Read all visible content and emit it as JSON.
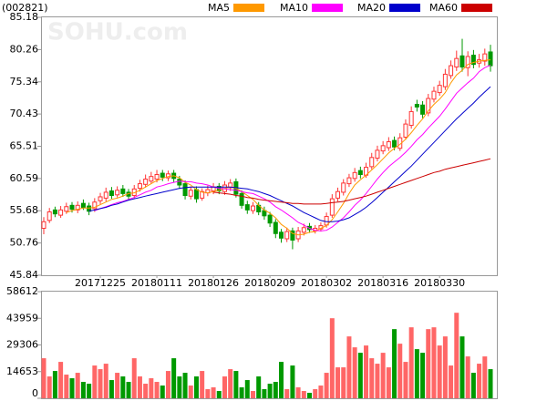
{
  "chart_data": [
    {
      "type": "candlestick",
      "title": "(002821)",
      "watermark": "SOHU.com",
      "up_color": "#ff3333",
      "down_color": "#009900",
      "categories": [
        null,
        null,
        null,
        null,
        null,
        null,
        null,
        null,
        null,
        null,
        "20171225",
        null,
        null,
        null,
        null,
        null,
        null,
        null,
        null,
        null,
        "20180111",
        null,
        null,
        null,
        null,
        null,
        null,
        null,
        null,
        null,
        "20180126",
        null,
        null,
        null,
        null,
        null,
        null,
        null,
        null,
        null,
        "20180209",
        null,
        null,
        null,
        null,
        null,
        null,
        null,
        null,
        null,
        "20180302",
        null,
        null,
        null,
        null,
        null,
        null,
        null,
        null,
        null,
        "20180316",
        null,
        null,
        null,
        null,
        null,
        null,
        null,
        null,
        null,
        "20180330",
        null,
        null,
        null,
        null,
        null,
        null,
        null,
        null,
        null
      ],
      "open": [
        53.0,
        54.2,
        55.8,
        55.0,
        55.6,
        56.5,
        55.8,
        56.8,
        56.4,
        56.0,
        57.2,
        57.6,
        58.7,
        58.1,
        59.0,
        58.5,
        58.0,
        59.1,
        59.7,
        60.2,
        60.5,
        61.4,
        60.7,
        61.4,
        60.5,
        59.8,
        57.9,
        58.9,
        57.6,
        58.4,
        58.7,
        59.4,
        58.6,
        59.2,
        60.1,
        58.3,
        56.6,
        55.7,
        56.5,
        55.7,
        55.0,
        53.9,
        52.4,
        51.4,
        52.6,
        51.4,
        52.4,
        53.3,
        52.6,
        52.9,
        53.5,
        55.0,
        57.6,
        58.5,
        59.8,
        60.6,
        61.8,
        61.1,
        62.4,
        63.7,
        64.8,
        65.3,
        66.4,
        65.2,
        66.9,
        68.7,
        71.9,
        71.8,
        70.6,
        72.7,
        73.7,
        74.6,
        76.3,
        77.6,
        79.3,
        77.5,
        79.4,
        78.2,
        78.5,
        79.9
      ],
      "high": [
        54.7,
        56.1,
        56.3,
        56.4,
        56.9,
        57.0,
        57.1,
        57.4,
        56.9,
        57.6,
        58.4,
        59.2,
        59.3,
        59.4,
        59.6,
        59.0,
        59.6,
        60.4,
        61.2,
        61.6,
        61.9,
        61.9,
        61.8,
        61.9,
        61.0,
        60.3,
        59.4,
        59.4,
        59.1,
        59.5,
        59.9,
        59.9,
        60.2,
        60.5,
        60.6,
        58.8,
        57.2,
        57.0,
        57.0,
        56.3,
        55.5,
        54.4,
        52.9,
        53.1,
        53.1,
        53.2,
        53.7,
        53.8,
        53.5,
        53.9,
        55.4,
        58.2,
        59.2,
        60.5,
        61.3,
        62.2,
        62.4,
        63.0,
        64.5,
        65.6,
        66.3,
        66.9,
        67.0,
        67.5,
        69.6,
        71.6,
        72.6,
        72.4,
        73.5,
        74.6,
        75.5,
        77.3,
        78.6,
        80.1,
        81.9,
        80.0,
        80.2,
        79.6,
        80.4,
        81.0
      ],
      "low": [
        52.1,
        53.8,
        54.7,
        54.6,
        55.2,
        55.4,
        55.3,
        55.8,
        55.0,
        55.5,
        56.7,
        57.1,
        57.5,
        57.7,
        57.8,
        57.3,
        57.6,
        58.6,
        59.2,
        59.8,
        60.0,
        60.2,
        60.2,
        60.0,
        59.0,
        57.4,
        57.4,
        56.9,
        57.2,
        57.9,
        58.2,
        58.2,
        58.1,
        58.7,
        57.7,
        56.0,
        55.2,
        55.2,
        55.0,
        54.3,
        53.2,
        51.5,
        50.8,
        50.9,
        49.8,
        50.9,
        51.9,
        52.3,
        52.2,
        52.5,
        53.1,
        54.6,
        57.1,
        58.0,
        59.3,
        60.1,
        60.6,
        60.7,
        62.0,
        63.2,
        64.3,
        64.8,
        64.9,
        64.8,
        66.5,
        68.2,
        70.8,
        69.8,
        70.1,
        72.2,
        73.2,
        74.1,
        75.8,
        77.0,
        76.9,
        76.2,
        77.4,
        77.5,
        77.8,
        76.9
      ],
      "close": [
        54.0,
        55.5,
        55.2,
        55.8,
        56.3,
        55.9,
        56.5,
        56.2,
        55.6,
        57.0,
        57.8,
        58.5,
        58.0,
        58.8,
        58.3,
        57.9,
        59.0,
        59.8,
        60.5,
        60.9,
        61.2,
        60.8,
        61.3,
        60.6,
        59.6,
        58.0,
        58.8,
        57.5,
        58.6,
        58.9,
        59.3,
        58.7,
        59.6,
        59.9,
        58.2,
        56.5,
        55.8,
        56.4,
        55.5,
        54.9,
        53.8,
        52.2,
        51.5,
        52.5,
        51.2,
        52.6,
        53.1,
        52.8,
        53.0,
        53.4,
        54.8,
        57.5,
        58.6,
        59.9,
        60.7,
        61.5,
        61.2,
        62.3,
        63.8,
        64.9,
        65.6,
        66.2,
        65.4,
        66.8,
        68.9,
        70.8,
        71.5,
        70.4,
        72.8,
        73.9,
        74.8,
        76.5,
        77.8,
        78.9,
        77.6,
        79.2,
        78.0,
        78.7,
        79.6,
        77.8
      ],
      "series": [
        {
          "name": "MA5",
          "color": "#ff9900",
          "values": [
            null,
            null,
            null,
            null,
            55.4,
            55.7,
            55.9,
            56.1,
            56.1,
            56.2,
            56.6,
            57.0,
            57.4,
            57.6,
            57.9,
            58.3,
            58.4,
            58.8,
            59.3,
            59.8,
            60.3,
            60.6,
            60.9,
            61.0,
            60.7,
            60.0,
            59.6,
            58.9,
            58.5,
            58.4,
            58.6,
            58.8,
            59.1,
            59.3,
            59.1,
            58.6,
            58.0,
            57.4,
            56.5,
            55.8,
            55.3,
            54.6,
            53.6,
            53.0,
            52.2,
            52.0,
            52.1,
            52.4,
            52.5,
            53.0,
            53.4,
            54.3,
            55.5,
            56.8,
            58.3,
            59.6,
            60.4,
            61.1,
            61.9,
            62.7,
            63.6,
            64.5,
            65.2,
            65.8,
            66.6,
            67.6,
            68.7,
            69.7,
            70.9,
            71.9,
            72.7,
            73.7,
            75.2,
            76.4,
            77.1,
            78.0,
            78.3,
            78.5,
            78.6,
            78.7
          ]
        },
        {
          "name": "MA10",
          "color": "#ff00ff",
          "values": [
            null,
            null,
            null,
            null,
            null,
            null,
            null,
            null,
            null,
            55.7,
            56.0,
            56.3,
            56.6,
            56.9,
            57.1,
            57.4,
            57.7,
            58.1,
            58.5,
            58.8,
            59.3,
            59.5,
            59.8,
            60.0,
            60.2,
            60.1,
            60.1,
            59.9,
            59.8,
            59.6,
            59.3,
            59.1,
            59.0,
            58.9,
            58.8,
            58.6,
            58.4,
            58.3,
            57.9,
            57.5,
            57.0,
            56.3,
            55.8,
            55.2,
            54.6,
            53.9,
            53.5,
            53.0,
            52.7,
            52.6,
            52.7,
            53.2,
            53.9,
            54.6,
            55.5,
            56.5,
            57.3,
            58.3,
            59.4,
            60.5,
            61.5,
            62.4,
            63.1,
            63.8,
            64.6,
            65.5,
            66.5,
            67.3,
            68.3,
            69.2,
            70.1,
            71.2,
            72.4,
            73.6,
            74.4,
            75.2,
            75.9,
            76.9,
            77.5,
            77.9
          ]
        },
        {
          "name": "MA20",
          "color": "#0000cc",
          "values": [
            null,
            null,
            null,
            null,
            null,
            null,
            null,
            null,
            55.6,
            55.8,
            56.0,
            56.2,
            56.5,
            56.7,
            57.0,
            57.3,
            57.5,
            57.7,
            57.9,
            58.1,
            58.3,
            58.5,
            58.7,
            58.9,
            59.1,
            59.2,
            59.3,
            59.3,
            59.3,
            59.3,
            59.3,
            59.3,
            59.3,
            59.3,
            59.2,
            59.1,
            59.0,
            58.8,
            58.6,
            58.3,
            58.0,
            57.6,
            57.2,
            56.8,
            56.4,
            55.9,
            55.4,
            55.0,
            54.6,
            54.2,
            54.0,
            54.0,
            54.1,
            54.3,
            54.6,
            55.1,
            55.6,
            56.2,
            56.9,
            57.7,
            58.5,
            59.3,
            60.1,
            60.9,
            61.7,
            62.5,
            63.4,
            64.3,
            65.2,
            66.1,
            67.0,
            67.9,
            68.8,
            69.7,
            70.5,
            71.3,
            72.1,
            73.0,
            73.8,
            74.6
          ]
        },
        {
          "name": "MA60",
          "color": "#cc0000",
          "values": [
            null,
            null,
            null,
            null,
            null,
            null,
            null,
            null,
            null,
            null,
            null,
            null,
            null,
            null,
            null,
            null,
            null,
            null,
            null,
            null,
            null,
            null,
            null,
            null,
            null,
            null,
            null,
            null,
            null,
            null,
            58.5,
            58.4,
            58.3,
            58.2,
            58.0,
            57.9,
            57.7,
            57.6,
            57.4,
            57.3,
            57.2,
            57.1,
            57.0,
            56.9,
            56.8,
            56.8,
            56.7,
            56.7,
            56.7,
            56.7,
            56.8,
            56.9,
            57.0,
            57.1,
            57.3,
            57.5,
            57.7,
            57.9,
            58.2,
            58.5,
            58.8,
            59.1,
            59.4,
            59.7,
            60.0,
            60.3,
            60.6,
            60.9,
            61.2,
            61.5,
            61.7,
            62.0,
            62.2,
            62.4,
            62.6,
            62.8,
            63.0,
            63.2,
            63.4,
            63.6
          ]
        }
      ],
      "ylim": [
        45.84,
        85.18
      ],
      "yticks": [
        85.18,
        80.26,
        75.34,
        70.43,
        65.51,
        60.59,
        55.68,
        50.76,
        45.84
      ]
    },
    {
      "type": "bar",
      "ylim": [
        0,
        58612
      ],
      "yticks": [
        58612,
        43959,
        29306,
        14653,
        0
      ],
      "values": [
        22000,
        12000,
        15000,
        20000,
        13000,
        11000,
        14000,
        9000,
        8000,
        18000,
        16000,
        19000,
        10000,
        14000,
        12000,
        9000,
        22000,
        12000,
        8000,
        11000,
        9000,
        7000,
        15000,
        22000,
        12000,
        14000,
        7000,
        12000,
        15000,
        5000,
        6000,
        4000,
        12000,
        16000,
        15000,
        6000,
        10000,
        4000,
        12000,
        5000,
        8000,
        9000,
        20000,
        5000,
        18000,
        6000,
        4000,
        3000,
        5000,
        7000,
        14000,
        44000,
        17000,
        17000,
        34000,
        28000,
        25000,
        29000,
        22000,
        19000,
        25000,
        17000,
        38000,
        30000,
        20000,
        39000,
        27000,
        25000,
        38000,
        39000,
        29000,
        34000,
        18000,
        47000,
        34000,
        23000,
        14000,
        19000,
        23000,
        16000
      ]
    }
  ]
}
